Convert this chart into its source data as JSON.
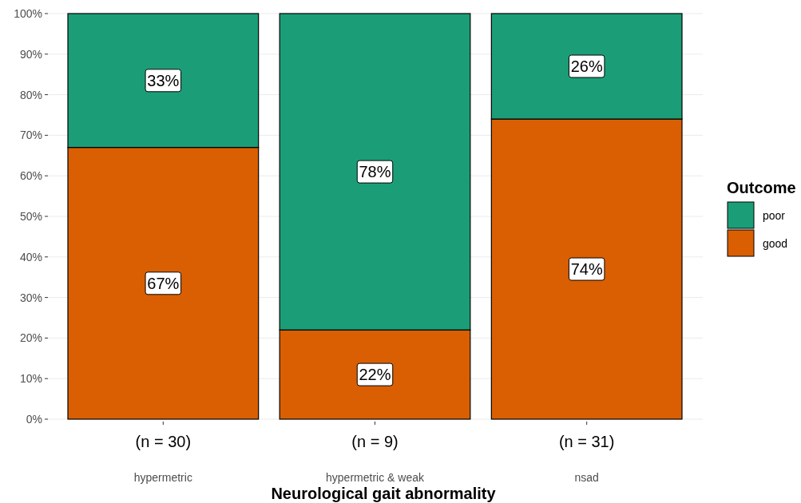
{
  "chart_data": {
    "type": "bar",
    "stacked": true,
    "xlabel": "Neurological gait abnormality",
    "legend_title": "Outcome",
    "legend": "right",
    "categories": [
      "hypermetric",
      "hypermetric & weak",
      "nsad"
    ],
    "series": [
      {
        "name": "good",
        "color": "#d95f02",
        "values": [
          67,
          22,
          74
        ],
        "value_labels": [
          "67%",
          "22%",
          "74%"
        ]
      },
      {
        "name": "poor",
        "color": "#1b9e77",
        "values": [
          33,
          78,
          26
        ],
        "value_labels": [
          "33%",
          "78%",
          "26%"
        ]
      }
    ],
    "ylim": [
      0,
      100
    ],
    "yticks": [
      {
        "value": 0,
        "label": "0%"
      },
      {
        "value": 10,
        "label": "10%"
      },
      {
        "value": 20,
        "label": "20%"
      },
      {
        "value": 30,
        "label": "30%"
      },
      {
        "value": 40,
        "label": "40%"
      },
      {
        "value": 50,
        "label": "50%"
      },
      {
        "value": 60,
        "label": "60%"
      },
      {
        "value": 70,
        "label": "70%"
      },
      {
        "value": 80,
        "label": "80%"
      },
      {
        "value": 90,
        "label": "90%"
      },
      {
        "value": 100,
        "label": "100%"
      }
    ],
    "grid": true,
    "annotations": [
      {
        "text": "(n = 30)",
        "x": "hypermetric"
      },
      {
        "text": "(n = 9)",
        "x": "hypermetric & weak"
      },
      {
        "text": "(n = 31)",
        "x": "nsad"
      }
    ]
  }
}
